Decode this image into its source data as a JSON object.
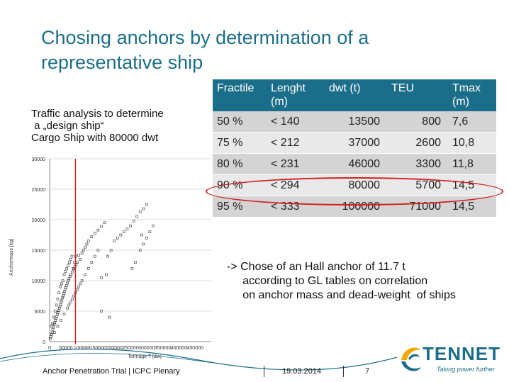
{
  "slide": {
    "title": "Chosing anchors by determination of a representative ship",
    "traffic_lines": [
      "Traffic analysis to determine",
      " a „design ship“",
      "Cargo Ship with 80000 dwt"
    ],
    "note_lines": [
      "-> Chose of an Hall anchor of 11.7 t",
      "     according to GL tables on correlation",
      "     on anchor mass and dead-weight  of ships"
    ],
    "footer": {
      "text": "Anchor Penetration Trial | ICPC Plenary",
      "date": "19.03.2014",
      "page": "7"
    },
    "logo": {
      "name": "TENNET",
      "tagline": "Taking power further"
    }
  },
  "table": {
    "headers": [
      "Fractile",
      "Lenght (m)",
      "dwt (t)",
      "TEU",
      "Tmax (m)"
    ],
    "rows": [
      [
        "50 %",
        "< 140",
        "13500",
        "800",
        "7,6"
      ],
      [
        "75 %",
        "< 212",
        "37000",
        "2600",
        "10,8"
      ],
      [
        "80 %",
        "< 231",
        "46000",
        "3300",
        "11,8"
      ],
      [
        "90 %",
        "< 294",
        "80000",
        "5700",
        "14,5"
      ],
      [
        "95 %",
        "< 333",
        "100000",
        "71000",
        "14,5"
      ]
    ],
    "highlight_row": 3,
    "highlight_color": "#d32020"
  },
  "chart_data": {
    "type": "scatter",
    "xlabel": "Tonnage T [dw]",
    "ylabel": "Anchormass [kg]",
    "xlim": [
      0,
      500000
    ],
    "ylim": [
      0,
      30000
    ],
    "xticks": [
      "0",
      "50000",
      "100000",
      "150000",
      "200000",
      "250000",
      "300000",
      "350000",
      "400000",
      "450000"
    ],
    "xtick_values": [
      0,
      50000,
      100000,
      150000,
      200000,
      250000,
      300000,
      350000,
      400000,
      450000
    ],
    "yticks": [
      "0",
      "5000",
      "10000",
      "15000",
      "20000",
      "25000",
      "30000"
    ],
    "ytick_values": [
      0,
      5000,
      10000,
      15000,
      20000,
      25000,
      30000
    ],
    "marker_line_x": 80000,
    "marker_line_color": "#d32020",
    "points": [
      [
        2000,
        500
      ],
      [
        4000,
        800
      ],
      [
        6000,
        1200
      ],
      [
        8000,
        1500
      ],
      [
        10000,
        2000
      ],
      [
        12000,
        2400
      ],
      [
        14000,
        2800
      ],
      [
        16000,
        3100
      ],
      [
        18000,
        3500
      ],
      [
        20000,
        3800
      ],
      [
        22000,
        4100
      ],
      [
        24000,
        4500
      ],
      [
        26000,
        4800
      ],
      [
        28000,
        5100
      ],
      [
        30000,
        5500
      ],
      [
        32000,
        5800
      ],
      [
        34000,
        6100
      ],
      [
        36000,
        6500
      ],
      [
        38000,
        6800
      ],
      [
        40000,
        7200
      ],
      [
        42000,
        7500
      ],
      [
        44000,
        7900
      ],
      [
        46000,
        8200
      ],
      [
        48000,
        8600
      ],
      [
        50000,
        8900
      ],
      [
        52000,
        9200
      ],
      [
        55000,
        9600
      ],
      [
        58000,
        10000
      ],
      [
        60000,
        10300
      ],
      [
        63000,
        10700
      ],
      [
        66000,
        11000
      ],
      [
        70000,
        11400
      ],
      [
        74000,
        11900
      ],
      [
        78000,
        12300
      ],
      [
        82000,
        12700
      ],
      [
        86000,
        13000
      ],
      [
        5000,
        2500
      ],
      [
        9000,
        3000
      ],
      [
        13000,
        4000
      ],
      [
        17000,
        5000
      ],
      [
        21000,
        6000
      ],
      [
        25000,
        7000
      ],
      [
        29000,
        8000
      ],
      [
        33000,
        9000
      ],
      [
        37000,
        9500
      ],
      [
        41000,
        10000
      ],
      [
        45000,
        11000
      ],
      [
        49000,
        11500
      ],
      [
        53000,
        12000
      ],
      [
        57000,
        12500
      ],
      [
        61000,
        13000
      ],
      [
        65000,
        13500
      ],
      [
        69000,
        14000
      ],
      [
        73000,
        12000
      ],
      [
        77000,
        13000
      ],
      [
        81000,
        14000
      ],
      [
        90000,
        14200
      ],
      [
        95000,
        13500
      ],
      [
        100000,
        14500
      ],
      [
        105000,
        15000
      ],
      [
        110000,
        15500
      ],
      [
        115000,
        16000
      ],
      [
        120000,
        16500
      ],
      [
        130000,
        17200
      ],
      [
        140000,
        17800
      ],
      [
        150000,
        18300
      ],
      [
        160000,
        18900
      ],
      [
        170000,
        19500
      ],
      [
        180000,
        14000
      ],
      [
        190000,
        15000
      ],
      [
        200000,
        16500
      ],
      [
        210000,
        17000
      ],
      [
        220000,
        17500
      ],
      [
        230000,
        18000
      ],
      [
        240000,
        18500
      ],
      [
        250000,
        19000
      ],
      [
        260000,
        19800
      ],
      [
        270000,
        20500
      ],
      [
        280000,
        21300
      ],
      [
        290000,
        21800
      ],
      [
        300000,
        22500
      ],
      [
        60000,
        6000
      ],
      [
        70000,
        7000
      ],
      [
        80000,
        8000
      ],
      [
        90000,
        9000
      ],
      [
        100000,
        10000
      ],
      [
        110000,
        11000
      ],
      [
        120000,
        12000
      ],
      [
        130000,
        13000
      ],
      [
        140000,
        14000
      ],
      [
        150000,
        15000
      ],
      [
        15000,
        1500
      ],
      [
        25000,
        2500
      ],
      [
        35000,
        3500
      ],
      [
        45000,
        4500
      ],
      [
        55000,
        5500
      ],
      [
        65000,
        6500
      ],
      [
        75000,
        7500
      ],
      [
        85000,
        8500
      ],
      [
        95000,
        9500
      ],
      [
        160000,
        10500
      ],
      [
        175000,
        11000
      ],
      [
        160000,
        5000
      ],
      [
        185000,
        4000
      ],
      [
        255000,
        12000
      ],
      [
        265000,
        13000
      ],
      [
        280000,
        15000
      ],
      [
        290000,
        16000
      ],
      [
        300000,
        17000
      ],
      [
        310000,
        18000
      ],
      [
        320000,
        19000
      ],
      [
        285000,
        17500
      ]
    ]
  }
}
